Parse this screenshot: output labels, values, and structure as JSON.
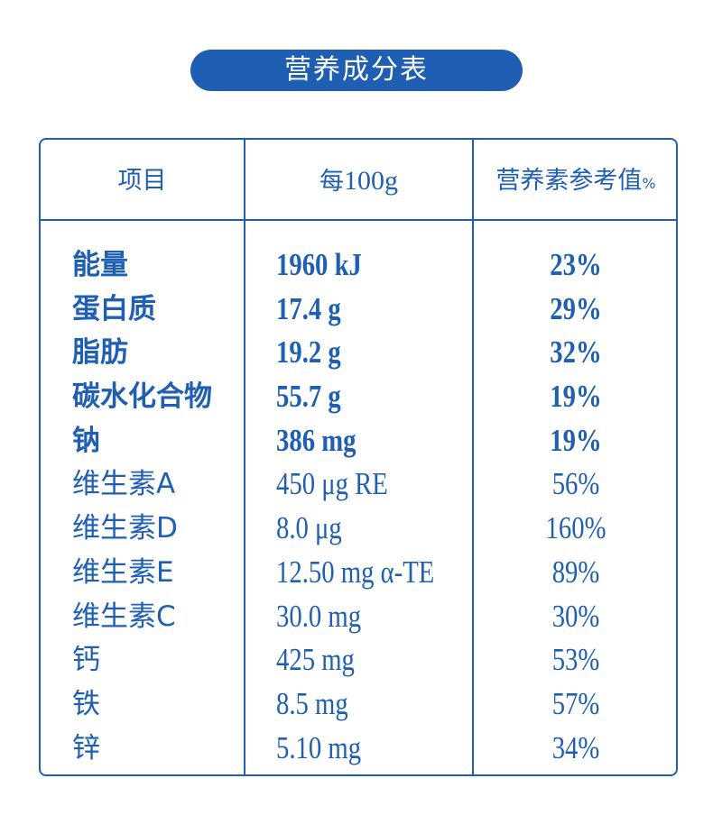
{
  "title": "营养成分表",
  "header": {
    "item": "项目",
    "per_prefix": "每",
    "per_amount": "100g",
    "nrv_label": "营养素参考值",
    "nrv_suffix": "%"
  },
  "rows": [
    {
      "name": "能量",
      "value": "1960 kJ",
      "nrv": "23%",
      "bold": true
    },
    {
      "name": "蛋白质",
      "value": "17.4 g",
      "nrv": "29%",
      "bold": true
    },
    {
      "name": "脂肪",
      "value": "19.2 g",
      "nrv": "32%",
      "bold": true
    },
    {
      "name": "碳水化合物",
      "value": "55.7 g",
      "nrv": "19%",
      "bold": true
    },
    {
      "name": "钠",
      "value": "386 mg",
      "nrv": "19%",
      "bold": true
    },
    {
      "name": "维生素A",
      "value": "450 μg RE",
      "nrv": "56%",
      "bold": false
    },
    {
      "name": "维生素D",
      "value": "8.0 μg",
      "nrv": "160%",
      "bold": false
    },
    {
      "name": "维生素E",
      "value": "12.50 mg α-TE",
      "nrv": "89%",
      "bold": false
    },
    {
      "name": "维生素C",
      "value": "30.0 mg",
      "nrv": "30%",
      "bold": false
    },
    {
      "name": "钙",
      "value": "425 mg",
      "nrv": "53%",
      "bold": false
    },
    {
      "name": "铁",
      "value": "8.5 mg",
      "nrv": "57%",
      "bold": false
    },
    {
      "name": "锌",
      "value": "5.10 mg",
      "nrv": "34%",
      "bold": false
    }
  ],
  "colors": {
    "accent": "#1e5fb4",
    "background": "#ffffff"
  }
}
